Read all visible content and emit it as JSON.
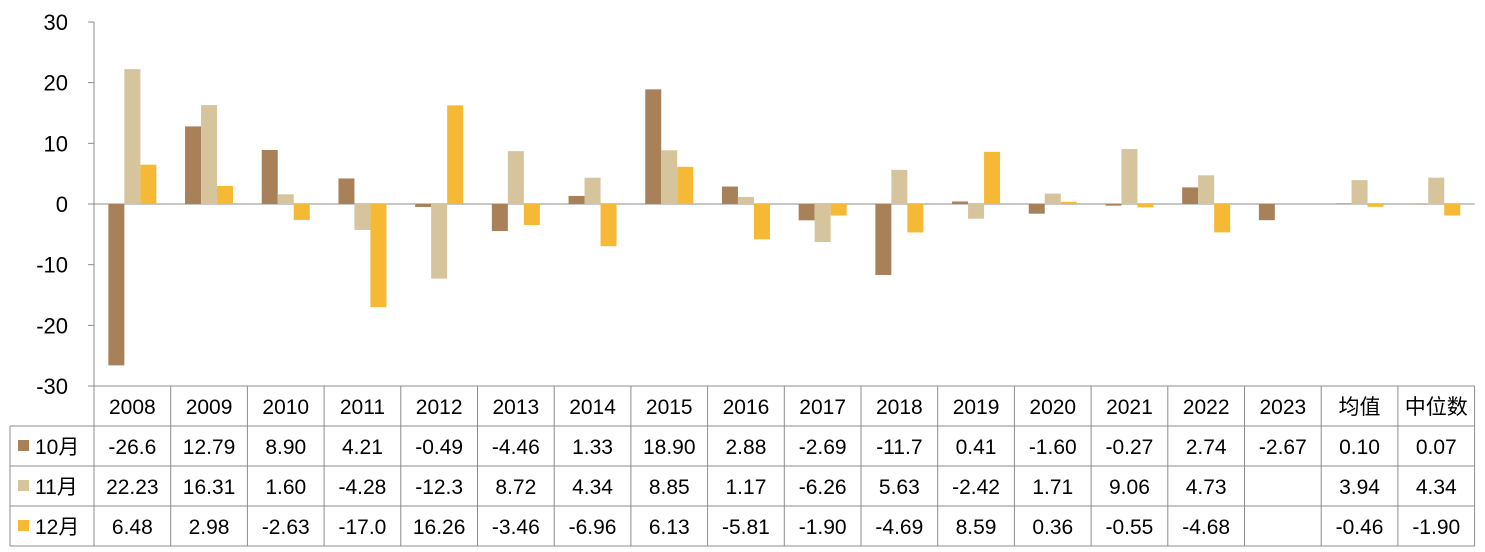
{
  "chart_data": {
    "type": "bar",
    "title": "",
    "xlabel": "",
    "ylabel": "",
    "ylim": [
      -30,
      30
    ],
    "yticks": [
      30,
      20,
      10,
      0,
      -10,
      -20,
      -30
    ],
    "grid": false,
    "legend": "table-rows-left",
    "categories": [
      "2008",
      "2009",
      "2010",
      "2011",
      "2012",
      "2013",
      "2014",
      "2015",
      "2016",
      "2017",
      "2018",
      "2019",
      "2020",
      "2021",
      "2022",
      "2023",
      "均值",
      "中位数"
    ],
    "series": [
      {
        "name": "10月",
        "color": "#A98159",
        "values": [
          -26.6,
          12.79,
          8.9,
          4.21,
          -0.49,
          -4.46,
          1.33,
          18.9,
          2.88,
          -2.69,
          -11.7,
          0.41,
          -1.6,
          -0.27,
          2.74,
          -2.67,
          0.1,
          0.07
        ],
        "labels": [
          "-26.6",
          "12.79",
          "8.90",
          "4.21",
          "-0.49",
          "-4.46",
          "1.33",
          "18.90",
          "2.88",
          "-2.69",
          "-11.7",
          "0.41",
          "-1.60",
          "-0.27",
          "2.74",
          "-2.67",
          "0.10",
          "0.07"
        ]
      },
      {
        "name": "11月",
        "color": "#D6C49C",
        "values": [
          22.23,
          16.31,
          1.6,
          -4.28,
          -12.3,
          8.72,
          4.34,
          8.85,
          1.17,
          -6.26,
          5.63,
          -2.42,
          1.71,
          9.06,
          4.73,
          null,
          3.94,
          4.34
        ],
        "labels": [
          "22.23",
          "16.31",
          "1.60",
          "-4.28",
          "-12.3",
          "8.72",
          "4.34",
          "8.85",
          "1.17",
          "-6.26",
          "5.63",
          "-2.42",
          "1.71",
          "9.06",
          "4.73",
          "",
          "3.94",
          "4.34"
        ]
      },
      {
        "name": "12月",
        "color": "#F6B936",
        "values": [
          6.48,
          2.98,
          -2.63,
          -17.0,
          16.26,
          -3.46,
          -6.96,
          6.13,
          -5.81,
          -1.9,
          -4.69,
          8.59,
          0.36,
          -0.55,
          -4.68,
          null,
          -0.46,
          -1.9
        ],
        "labels": [
          "6.48",
          "2.98",
          "-2.63",
          "-17.0",
          "16.26",
          "-3.46",
          "-6.96",
          "6.13",
          "-5.81",
          "-1.90",
          "-4.69",
          "8.59",
          "0.36",
          "-0.55",
          "-4.68",
          "",
          "-0.46",
          "-1.90"
        ]
      }
    ]
  }
}
